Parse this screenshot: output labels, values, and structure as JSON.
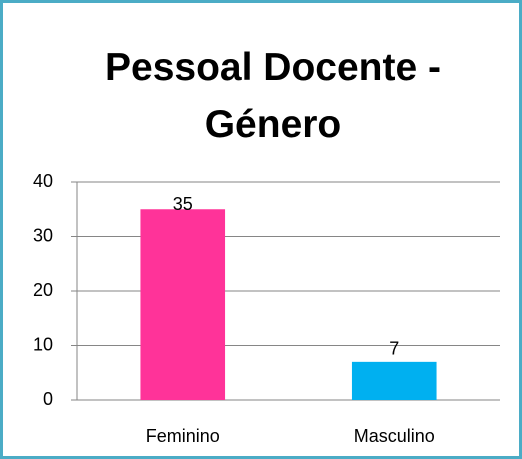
{
  "chart_data": {
    "type": "bar",
    "title": "Pessoal Docente - Género",
    "categories": [
      "Feminino",
      "Masculino"
    ],
    "values": [
      35,
      7
    ],
    "colors": [
      "#ff3399",
      "#00b0f0"
    ],
    "ylim": [
      0,
      40
    ],
    "yticks": [
      0,
      10,
      20,
      30,
      40
    ],
    "grid": true
  }
}
